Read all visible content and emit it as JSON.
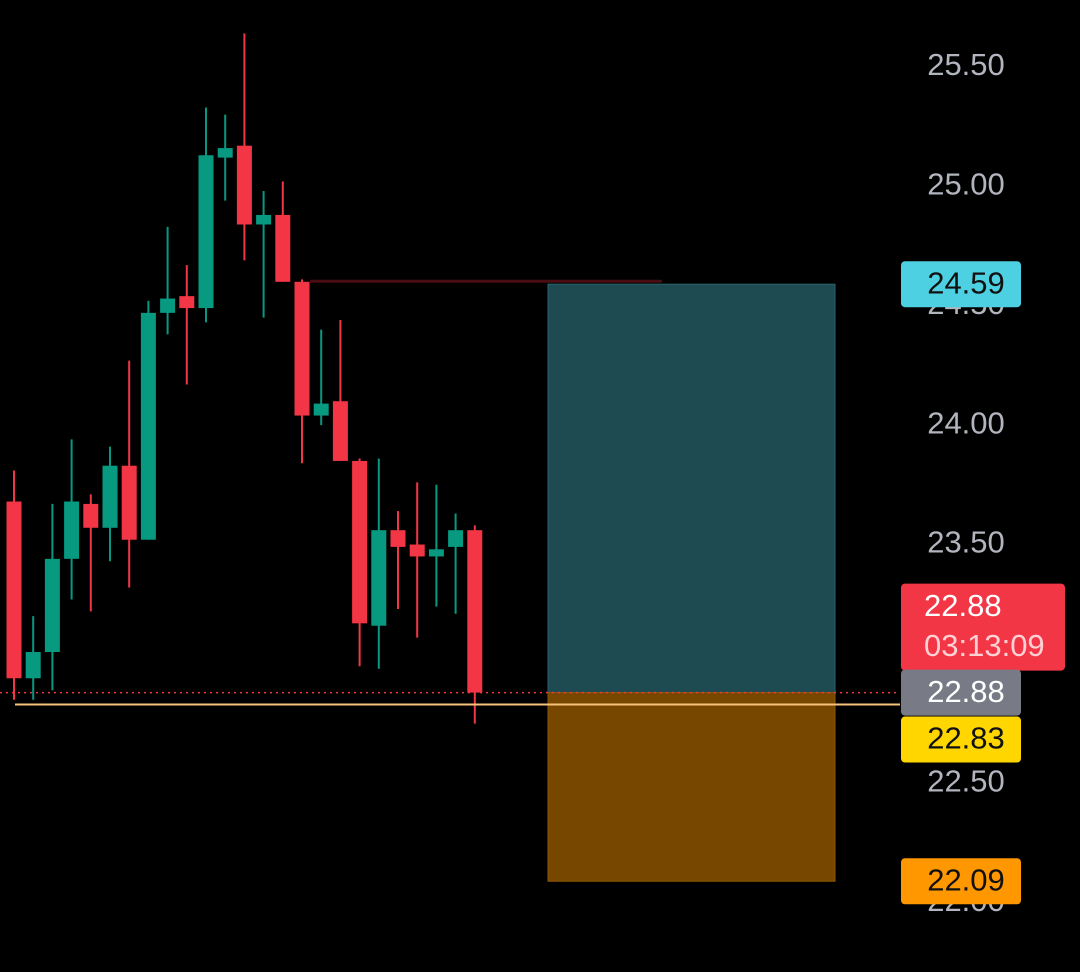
{
  "chart_data": {
    "type": "candlestick",
    "candles": {
      "open": [
        23.68,
        22.94,
        23.05,
        23.44,
        23.67,
        23.57,
        23.83,
        23.52,
        24.47,
        24.54,
        24.49,
        25.12,
        25.17,
        24.84,
        24.88,
        24.6,
        24.04,
        24.1,
        23.85,
        23.16,
        23.56,
        23.5,
        23.45,
        23.49,
        23.56
      ],
      "high": [
        23.81,
        23.2,
        23.67,
        23.94,
        23.71,
        23.91,
        24.27,
        24.52,
        24.83,
        24.67,
        25.33,
        25.3,
        25.64,
        24.98,
        25.02,
        24.61,
        24.4,
        24.44,
        23.86,
        23.86,
        23.64,
        23.76,
        23.75,
        23.63,
        23.58
      ],
      "low": [
        22.85,
        22.85,
        22.89,
        23.27,
        23.22,
        23.43,
        23.32,
        23.52,
        24.38,
        24.17,
        24.43,
        24.94,
        24.69,
        24.45,
        24.6,
        23.84,
        24.0,
        23.85,
        22.99,
        22.98,
        23.23,
        23.11,
        23.24,
        23.21,
        22.75
      ],
      "close": [
        22.94,
        23.05,
        23.44,
        23.68,
        23.57,
        23.83,
        23.52,
        24.47,
        24.53,
        24.49,
        25.13,
        25.16,
        24.84,
        24.88,
        24.6,
        24.04,
        24.09,
        23.85,
        23.17,
        23.56,
        23.49,
        23.45,
        23.48,
        23.56,
        22.88
      ]
    },
    "up_color": "#089981",
    "down_color": "#f23645",
    "ylim": [
      21.71,
      25.78
    ],
    "yticks": [
      {
        "value": 25.5,
        "label": "25.50"
      },
      {
        "value": 25.0,
        "label": "25.00"
      },
      {
        "value": 24.5,
        "label": "24.50"
      },
      {
        "value": 24.0,
        "label": "24.00"
      },
      {
        "value": 23.5,
        "label": "23.50"
      },
      {
        "value": 22.5,
        "label": "22.50"
      },
      {
        "value": 22.0,
        "label": "22.00"
      }
    ],
    "last_price": 22.88,
    "countdown": "03:13:09",
    "horizontal_line": 22.83,
    "position": {
      "target": 24.59,
      "entry": 22.88,
      "stop": 22.09
    }
  }
}
